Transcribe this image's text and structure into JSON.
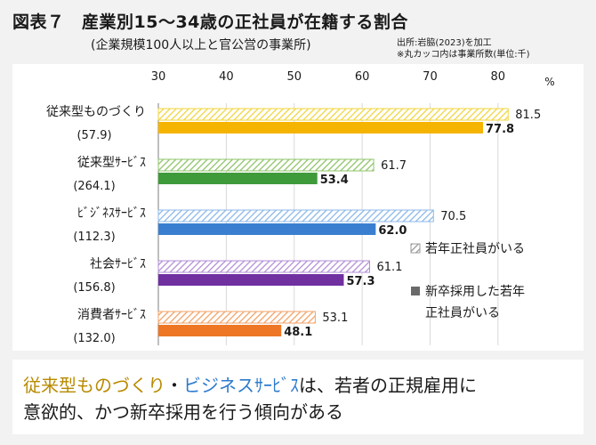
{
  "header": {
    "title": "図表７　産業別15～34歳の正社員が在籍する割合",
    "subtitle": "(企業規模100人以上と官公営の事業所)",
    "source_note": "出所:岩脇(2023)を加工",
    "count_note": "※丸カッコ内は事業所数(単位:千)"
  },
  "chart_data": {
    "type": "bar",
    "orientation": "horizontal",
    "unit_label": "%",
    "xlim": [
      30,
      85
    ],
    "ticks": [
      30,
      40,
      50,
      60,
      70,
      80
    ],
    "grid": true,
    "legend_position": "right",
    "categories": [
      {
        "name": "従来型ものづくり",
        "count": "(57.9)"
      },
      {
        "name": "従来型ｻｰﾋﾞｽ",
        "count": "(264.1)"
      },
      {
        "name": "ﾋﾞｼﾞﾈｽｻｰﾋﾞｽ",
        "count": "(112.3)"
      },
      {
        "name": "社会ｻｰﾋﾞｽ",
        "count": "(156.8)"
      },
      {
        "name": "消費者ｻｰﾋﾞｽ",
        "count": "(132.0)"
      }
    ],
    "series": [
      {
        "name": "若年正社員がいる",
        "style": "hatched",
        "values": [
          81.5,
          61.7,
          70.5,
          61.1,
          53.1
        ]
      },
      {
        "name": "新卒採用した若年正社員がいる",
        "style": "solid",
        "values": [
          77.8,
          53.4,
          62.0,
          57.3,
          48.1
        ]
      }
    ],
    "legend_labels": [
      "若年正社員がいる",
      "新卒採用した若年",
      "正社員がいる"
    ],
    "colors": {
      "hatch": [
        "#f0d640",
        "#8fc46a",
        "#8cb8e8",
        "#b38fd6",
        "#f2a368"
      ],
      "solid": [
        "#f5b400",
        "#3f9a3a",
        "#3a7fcf",
        "#7030a0",
        "#ee7726"
      ],
      "legend_hatch": "#9a9a9a",
      "legend_solid": "#6a6a6a",
      "grid": "#d9d9d9",
      "axis": "#7f7f7f"
    }
  },
  "footer": {
    "highlight_1": "従来型ものづくり",
    "separator": "・",
    "highlight_2": "ビジネスｻｰﾋﾞｽ",
    "text_1": "は、若者の正規雇用に",
    "text_2": "意欲的、かつ新卒採用を行う傾向がある",
    "color_1": "#b88a00",
    "color_2": "#2e7bcf"
  }
}
